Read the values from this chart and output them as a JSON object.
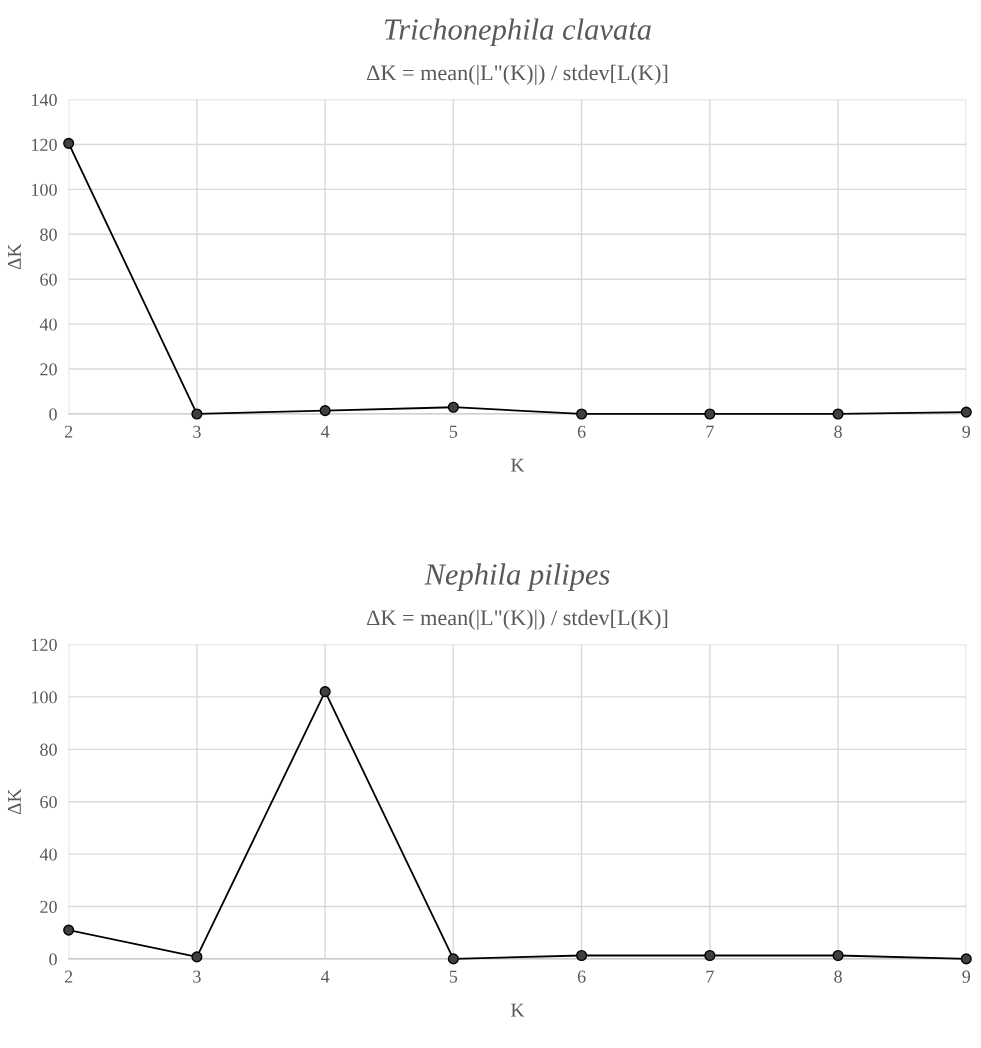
{
  "chart_data": [
    {
      "type": "line",
      "title": "Trichonephila clavata",
      "subtitle": "ΔK = mean(|L\"(K)|) / stdev[L(K)]",
      "xlabel": "K",
      "ylabel": "ΔK",
      "x": [
        2,
        3,
        4,
        5,
        6,
        7,
        8,
        9
      ],
      "series": [
        {
          "color": "#404040",
          "values": [
            120.5,
            0,
            1.5,
            3,
            0,
            0,
            0,
            0.8
          ]
        }
      ],
      "xlim": [
        2,
        9
      ],
      "xticks": [
        2,
        3,
        4,
        5,
        6,
        7,
        8,
        9
      ],
      "ylim": [
        0,
        140
      ],
      "yticks": [
        0,
        20,
        40,
        60,
        80,
        100,
        120,
        140
      ],
      "grid": true,
      "marker": "circle",
      "line_style": "solid"
    },
    {
      "type": "line",
      "title": "Nephila pilipes",
      "subtitle": "ΔK = mean(|L\"(K)|) / stdev[L(K)]",
      "xlabel": "K",
      "ylabel": "ΔK",
      "x": [
        2,
        3,
        4,
        5,
        6,
        7,
        8,
        9
      ],
      "series": [
        {
          "color": "#404040",
          "values": [
            11,
            0.8,
            102,
            0,
            1.3,
            1.3,
            1.3,
            0
          ]
        }
      ],
      "xlim": [
        2,
        9
      ],
      "xticks": [
        2,
        3,
        4,
        5,
        6,
        7,
        8,
        9
      ],
      "ylim": [
        0,
        120
      ],
      "yticks": [
        0,
        20,
        40,
        60,
        80,
        100,
        120
      ],
      "grid": true,
      "marker": "circle",
      "line_style": "solid"
    }
  ]
}
